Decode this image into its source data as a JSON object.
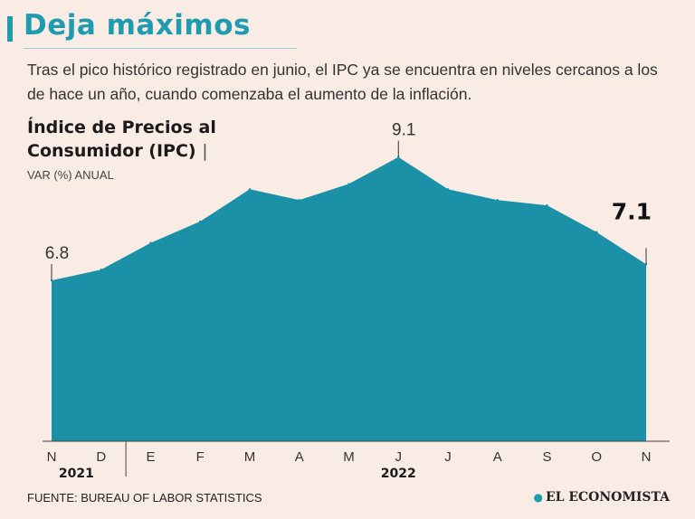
{
  "header": {
    "title": "Deja máximos",
    "subtitle": "Tras el pico histórico registrado en junio, el IPC ya se encuentra en niveles cercanos a los de hace un año, cuando comenzaba el aumento de la inflación.",
    "measure_line1": "Índice de Precios al",
    "measure_line2": "Consumidor (IPC)",
    "measure_pipe": "|",
    "units": "VAR (%) ANUAL"
  },
  "footer": {
    "source": "FUENTE: BUREAU OF LABOR STATISTICS",
    "brand": "EL ECONOMISTA",
    "brand_mark": "●"
  },
  "colors": {
    "area": "#1b91a8",
    "accent": "#1f9bb0",
    "background": "#f9ece4"
  },
  "chart_data": {
    "type": "area",
    "title": "Índice de Precios al Consumidor (IPC)",
    "ylabel": "VAR (%) ANUAL",
    "categories": [
      "N",
      "D",
      "E",
      "F",
      "M",
      "A",
      "M",
      "J",
      "J",
      "A",
      "S",
      "O",
      "N"
    ],
    "values": [
      6.8,
      7.0,
      7.5,
      7.9,
      8.5,
      8.3,
      8.6,
      9.1,
      8.5,
      8.3,
      8.2,
      7.7,
      7.1
    ],
    "years": [
      {
        "label": "2021",
        "start": 0,
        "end": 1
      },
      {
        "label": "2022",
        "start": 2,
        "end": 12
      }
    ],
    "annotations": [
      {
        "index": 0,
        "text": "6.8",
        "emphasis": false
      },
      {
        "index": 7,
        "text": "9.1",
        "emphasis": false
      },
      {
        "index": 12,
        "text": "7.1",
        "emphasis": true
      }
    ],
    "ylim": [
      3.8,
      9.5
    ],
    "grid": false
  }
}
